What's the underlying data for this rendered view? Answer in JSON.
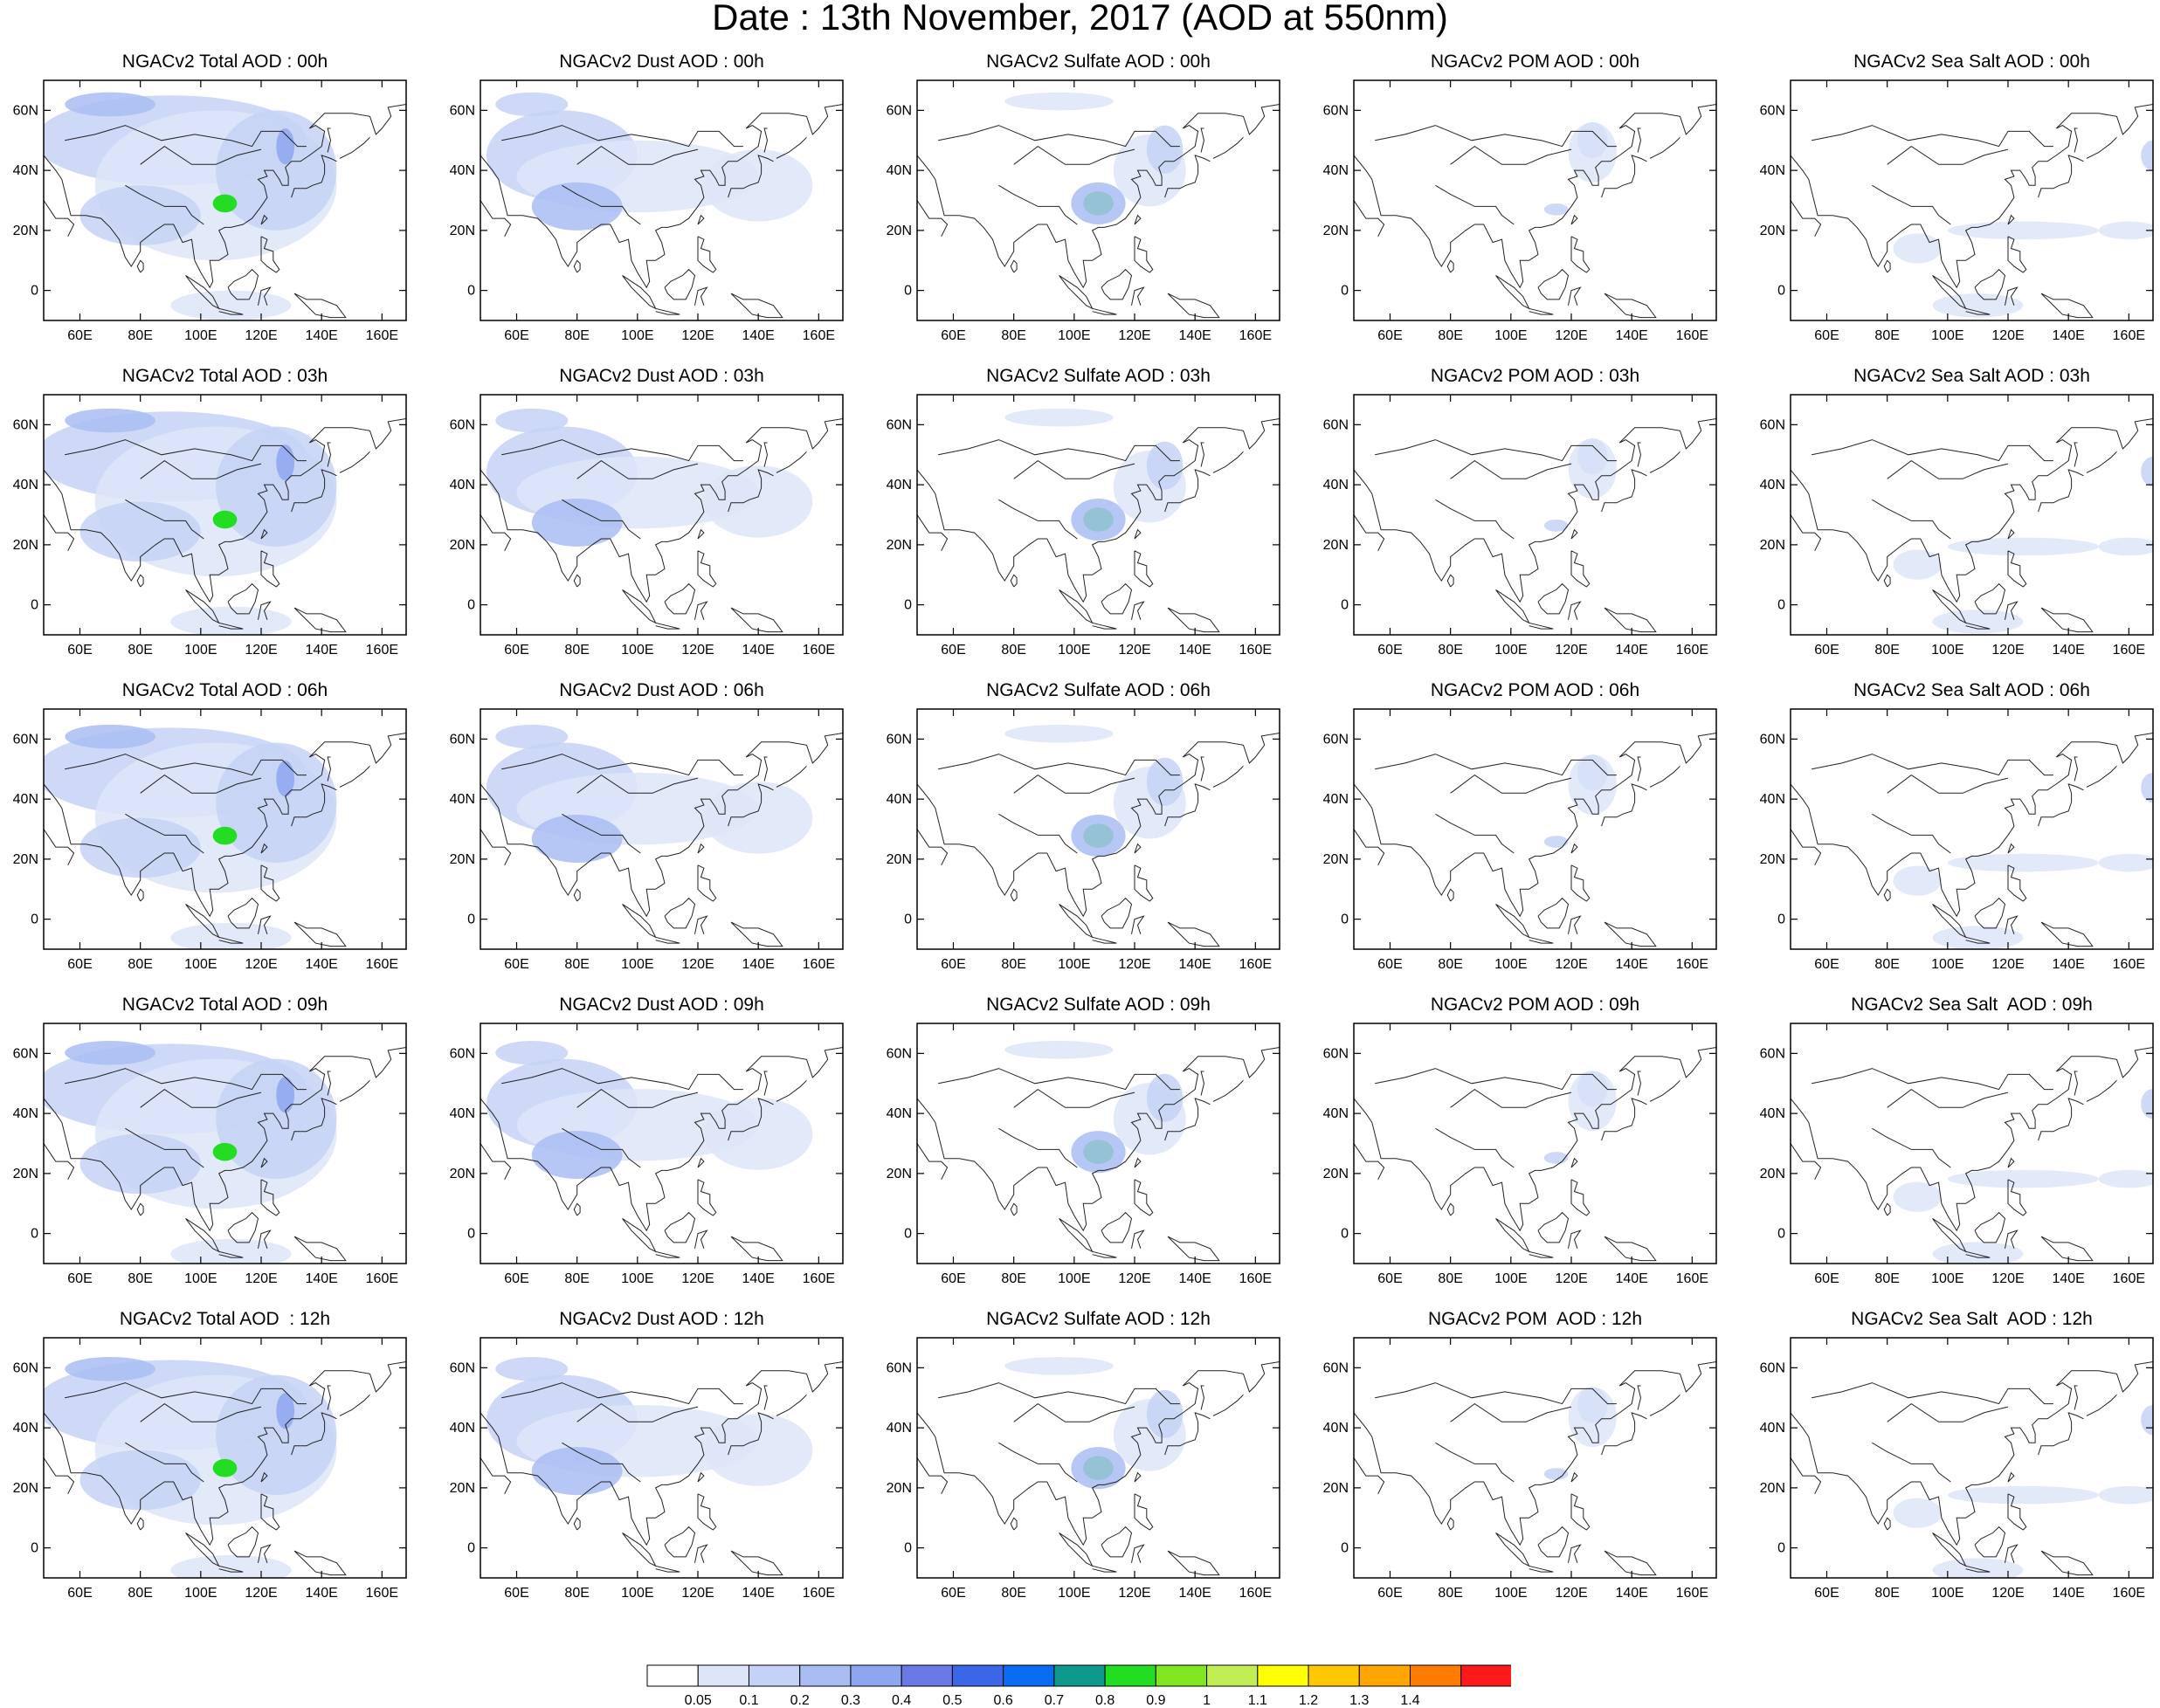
{
  "title": "Date : 13th November, 2017 (AOD at 550nm)",
  "lon_ticks": [
    "60E",
    "80E",
    "100E",
    "120E",
    "140E",
    "160E"
  ],
  "lat_ticks": [
    "60N",
    "40N",
    "20N",
    "0"
  ],
  "rows": [
    [
      "NGACv2 Total AOD : 00h",
      "NGACv2 Dust AOD : 00h",
      "NGACv2 Sulfate AOD : 00h",
      "NGACv2 POM AOD : 00h",
      "NGACv2 Sea Salt AOD : 00h"
    ],
    [
      "NGACv2 Total AOD : 03h",
      "NGACv2 Dust AOD : 03h",
      "NGACv2 Sulfate AOD : 03h",
      "NGACv2 POM AOD : 03h",
      "NGACv2 Sea Salt AOD : 03h"
    ],
    [
      "NGACv2 Total AOD : 06h",
      "NGACv2 Dust AOD : 06h",
      "NGACv2 Sulfate AOD : 06h",
      "NGACv2 POM AOD : 06h",
      "NGACv2 Sea Salt AOD : 06h"
    ],
    [
      "NGACv2 Total AOD : 09h",
      "NGACv2 Dust AOD : 09h",
      "NGACv2 Sulfate AOD : 09h",
      "NGACv2 POM AOD : 09h",
      "NGACv2 Sea Salt  AOD : 09h"
    ],
    [
      "NGACv2 Total AOD  : 12h",
      "NGACv2 Dust AOD : 12h",
      "NGACv2 Sulfate AOD : 12h",
      "NGACv2 POM  AOD : 12h",
      "NGACv2 Sea Salt  AOD : 12h"
    ]
  ],
  "colorbar": {
    "labels": [
      "0.05",
      "0.1",
      "0.2",
      "0.3",
      "0.4",
      "0.5",
      "0.6",
      "0.7",
      "0.8",
      "0.9",
      "1",
      "1.1",
      "1.2",
      "1.3",
      "1.4"
    ],
    "colors": [
      "#ffffff",
      "#dde5f8",
      "#c4d2f5",
      "#a9bdf3",
      "#8ea6f0",
      "#6a79e6",
      "#3b66e8",
      "#0a6cf0",
      "#0d9a8c",
      "#22dd22",
      "#7fe620",
      "#c2ee55",
      "#ffff00",
      "#ffc800",
      "#ffa500",
      "#ff7c00",
      "#ff1a1a"
    ]
  },
  "fields": {
    "total": [
      {
        "lon": 90,
        "lat": 50,
        "rx": 45,
        "ry": 15,
        "c": 2
      },
      {
        "lon": 105,
        "lat": 35,
        "rx": 40,
        "ry": 25,
        "c": 1
      },
      {
        "lon": 125,
        "lat": 40,
        "rx": 20,
        "ry": 20,
        "c": 2
      },
      {
        "lon": 80,
        "lat": 25,
        "rx": 20,
        "ry": 10,
        "c": 2
      },
      {
        "lon": 108,
        "lat": 29,
        "rx": 4,
        "ry": 3,
        "c": 9
      },
      {
        "lon": 128,
        "lat": 48,
        "rx": 3,
        "ry": 6,
        "c": 4
      },
      {
        "lon": 70,
        "lat": 62,
        "rx": 15,
        "ry": 4,
        "c": 3
      },
      {
        "lon": 110,
        "lat": -5,
        "rx": 20,
        "ry": 5,
        "c": 1
      }
    ],
    "dust": [
      {
        "lon": 75,
        "lat": 45,
        "rx": 25,
        "ry": 15,
        "c": 2
      },
      {
        "lon": 100,
        "lat": 38,
        "rx": 40,
        "ry": 12,
        "c": 1
      },
      {
        "lon": 80,
        "lat": 28,
        "rx": 15,
        "ry": 8,
        "c": 3
      },
      {
        "lon": 140,
        "lat": 35,
        "rx": 18,
        "ry": 12,
        "c": 1
      },
      {
        "lon": 65,
        "lat": 62,
        "rx": 12,
        "ry": 4,
        "c": 2
      }
    ],
    "sulfate": [
      {
        "lon": 108,
        "lat": 29,
        "rx": 5,
        "ry": 4,
        "c": 9
      },
      {
        "lon": 108,
        "lat": 29,
        "rx": 9,
        "ry": 7,
        "c": 3
      },
      {
        "lon": 125,
        "lat": 40,
        "rx": 12,
        "ry": 12,
        "c": 1
      },
      {
        "lon": 130,
        "lat": 47,
        "rx": 6,
        "ry": 8,
        "c": 2
      },
      {
        "lon": 95,
        "lat": 63,
        "rx": 18,
        "ry": 3,
        "c": 1
      }
    ],
    "pom": [
      {
        "lon": 127,
        "lat": 50,
        "rx": 5,
        "ry": 6,
        "c": 3
      },
      {
        "lon": 127,
        "lat": 46,
        "rx": 8,
        "ry": 10,
        "c": 1
      },
      {
        "lon": 115,
        "lat": 27,
        "rx": 4,
        "ry": 2,
        "c": 2
      }
    ],
    "seasalt": [
      {
        "lon": 125,
        "lat": 20,
        "rx": 25,
        "ry": 3,
        "c": 1
      },
      {
        "lon": 90,
        "lat": 14,
        "rx": 8,
        "ry": 5,
        "c": 1
      },
      {
        "lon": 168,
        "lat": 45,
        "rx": 4,
        "ry": 5,
        "c": 2
      },
      {
        "lon": 110,
        "lat": -5,
        "rx": 15,
        "ry": 4,
        "c": 1
      },
      {
        "lon": 160,
        "lat": 20,
        "rx": 10,
        "ry": 3,
        "c": 1
      }
    ]
  }
}
